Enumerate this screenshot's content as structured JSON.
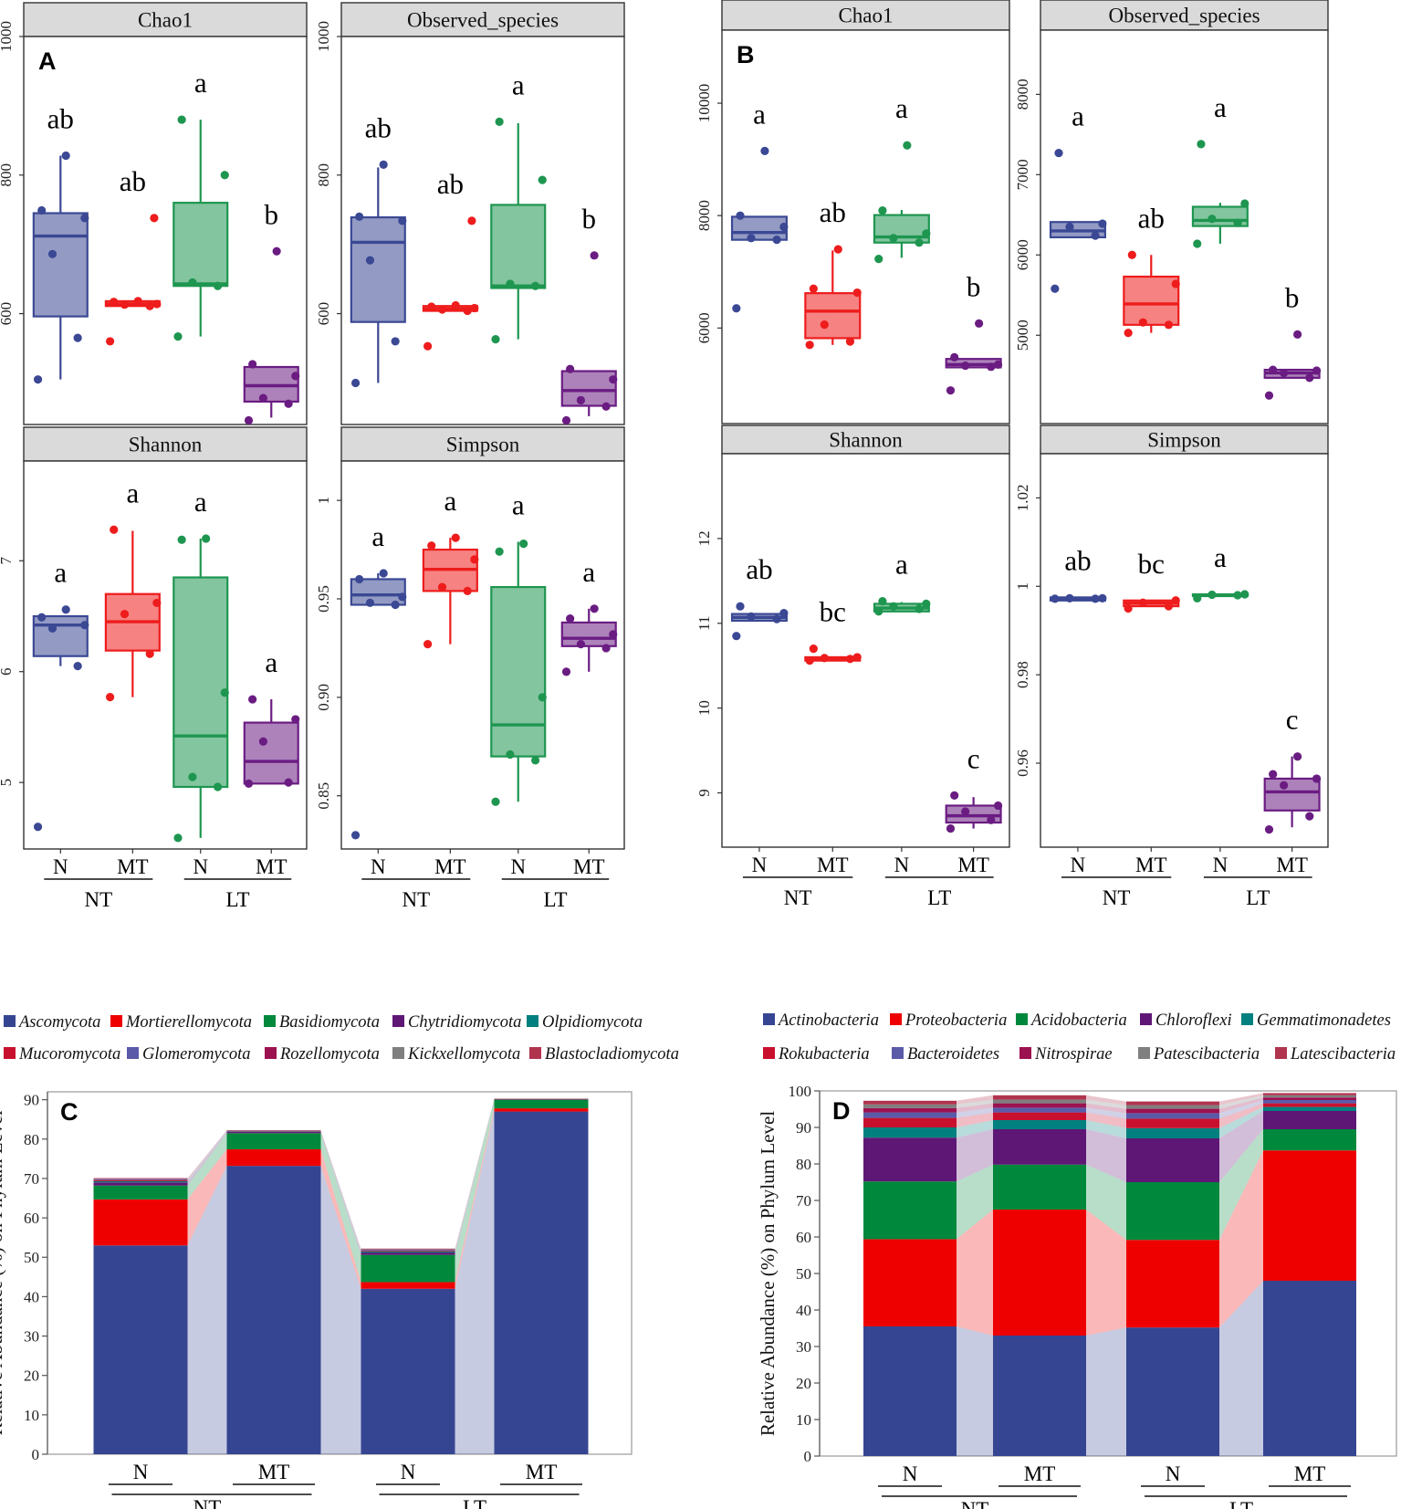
{
  "colors": {
    "N_NT": "#3B4894",
    "MT_NT": "#EE1C1C",
    "N_LT": "#1E9650",
    "MT_LT": "#6A1C82",
    "strip_bg": "#DADADA"
  },
  "panels": {
    "A": "A",
    "B": "B",
    "C": "C",
    "D": "D"
  },
  "x_axis": {
    "labels": [
      "N",
      "MT",
      "N",
      "MT"
    ],
    "group_labels": [
      "NT",
      "LT"
    ]
  },
  "chart_data": [
    {
      "type": "boxplot",
      "panel": "A",
      "title": "Chao1",
      "ylim": [
        440,
        1000
      ],
      "yticks": [
        600,
        800,
        1000
      ],
      "groups": [
        {
          "name": "N NT",
          "q1": 596,
          "median": 712,
          "q3": 745,
          "whisker_low": 505,
          "whisker_high": 828,
          "points": [
            505,
            565,
            686,
            738,
            749,
            828
          ],
          "sig": "ab"
        },
        {
          "name": "MT NT",
          "q1": 611,
          "median": 614,
          "q3": 618,
          "whisker_low": 611,
          "whisker_high": 618,
          "points": [
            560,
            611,
            613,
            614,
            617,
            618,
            738
          ],
          "sig": "ab"
        },
        {
          "name": "N LT",
          "q1": 640,
          "median": 643,
          "q3": 760,
          "whisker_low": 567,
          "whisker_high": 880,
          "points": [
            567,
            640,
            645,
            800,
            880
          ],
          "sig": "a"
        },
        {
          "name": "MT LT",
          "q1": 473,
          "median": 496,
          "q3": 523,
          "whisker_low": 450,
          "whisker_high": 523,
          "points": [
            446,
            470,
            478,
            510,
            527,
            690
          ],
          "sig": "b"
        }
      ]
    },
    {
      "type": "boxplot",
      "panel": "A",
      "title": "Observed_species",
      "ylim": [
        440,
        1000
      ],
      "yticks": [
        600,
        800,
        1000
      ],
      "groups": [
        {
          "name": "N NT",
          "q1": 588,
          "median": 703,
          "q3": 739,
          "whisker_low": 500,
          "whisker_high": 811,
          "points": [
            500,
            560,
            677,
            734,
            740,
            815
          ],
          "sig": "ab"
        },
        {
          "name": "MT NT",
          "q1": 604,
          "median": 607,
          "q3": 611,
          "whisker_low": 604,
          "whisker_high": 611,
          "points": [
            553,
            604,
            606,
            608,
            610,
            612,
            734
          ],
          "sig": "ab"
        },
        {
          "name": "N LT",
          "q1": 637,
          "median": 640,
          "q3": 757,
          "whisker_low": 563,
          "whisker_high": 875,
          "points": [
            563,
            640,
            643,
            793,
            877
          ],
          "sig": "a"
        },
        {
          "name": "MT LT",
          "q1": 467,
          "median": 489,
          "q3": 517,
          "whisker_low": 452,
          "whisker_high": 517,
          "points": [
            446,
            466,
            475,
            505,
            520,
            684
          ],
          "sig": "b"
        }
      ]
    },
    {
      "type": "boxplot",
      "panel": "A",
      "title": "Shannon",
      "ylim": [
        4.4,
        7.9
      ],
      "yticks": [
        5,
        6,
        7
      ],
      "groups": [
        {
          "name": "N NT",
          "q1": 6.14,
          "median": 6.42,
          "q3": 6.5,
          "whisker_low": 6.05,
          "whisker_high": 6.5,
          "points": [
            4.6,
            6.05,
            6.39,
            6.42,
            6.49,
            6.56
          ],
          "sig": "a"
        },
        {
          "name": "MT NT",
          "q1": 6.19,
          "median": 6.45,
          "q3": 6.7,
          "whisker_low": 5.77,
          "whisker_high": 7.27,
          "points": [
            5.77,
            6.16,
            6.52,
            6.62,
            7.28
          ],
          "sig": "a"
        },
        {
          "name": "N LT",
          "q1": 4.96,
          "median": 5.42,
          "q3": 6.85,
          "whisker_low": 4.5,
          "whisker_high": 7.2,
          "points": [
            4.5,
            4.96,
            5.05,
            5.81,
            7.19,
            7.2
          ],
          "sig": "a"
        },
        {
          "name": "MT LT",
          "q1": 4.99,
          "median": 5.19,
          "q3": 5.54,
          "whisker_low": 4.99,
          "whisker_high": 5.75,
          "points": [
            4.99,
            5.0,
            5.37,
            5.57,
            5.75
          ],
          "sig": "a"
        }
      ]
    },
    {
      "type": "boxplot",
      "panel": "A",
      "title": "Simpson",
      "ylim": [
        0.823,
        1.02
      ],
      "yticks": [
        0.85,
        0.9,
        0.95,
        1.0
      ],
      "groups": [
        {
          "name": "N NT",
          "q1": 0.947,
          "median": 0.952,
          "q3": 0.96,
          "whisker_low": 0.947,
          "whisker_high": 0.963,
          "points": [
            0.83,
            0.947,
            0.948,
            0.951,
            0.96,
            0.963
          ],
          "sig": "a"
        },
        {
          "name": "MT NT",
          "q1": 0.954,
          "median": 0.965,
          "q3": 0.975,
          "whisker_low": 0.927,
          "whisker_high": 0.981,
          "points": [
            0.927,
            0.954,
            0.956,
            0.97,
            0.977,
            0.981
          ],
          "sig": "a"
        },
        {
          "name": "N LT",
          "q1": 0.87,
          "median": 0.886,
          "q3": 0.956,
          "whisker_low": 0.847,
          "whisker_high": 0.979,
          "points": [
            0.847,
            0.868,
            0.871,
            0.9,
            0.974,
            0.978
          ],
          "sig": "a"
        },
        {
          "name": "MT LT",
          "q1": 0.926,
          "median": 0.93,
          "q3": 0.938,
          "whisker_low": 0.913,
          "whisker_high": 0.945,
          "points": [
            0.913,
            0.925,
            0.927,
            0.932,
            0.94,
            0.945
          ],
          "sig": "a"
        }
      ]
    },
    {
      "type": "boxplot",
      "panel": "B",
      "title": "Chao1",
      "ylim": [
        4300,
        11300
      ],
      "yticks": [
        6000,
        8000,
        10000
      ],
      "groups": [
        {
          "name": "N NT",
          "q1": 7570,
          "median": 7700,
          "q3": 7980,
          "whisker_low": 7570,
          "whisker_high": 7980,
          "points": [
            6350,
            7570,
            7600,
            7800,
            8000,
            9150
          ],
          "sig": "a"
        },
        {
          "name": "MT NT",
          "q1": 5820,
          "median": 6300,
          "q3": 6620,
          "whisker_low": 5700,
          "whisker_high": 7380,
          "points": [
            5700,
            5760,
            6060,
            6630,
            6700,
            7400
          ],
          "sig": "ab"
        },
        {
          "name": "N LT",
          "q1": 7520,
          "median": 7620,
          "q3": 8010,
          "whisker_low": 7250,
          "whisker_high": 8100,
          "points": [
            7230,
            7520,
            7600,
            7680,
            8090,
            9250
          ],
          "sig": "a"
        },
        {
          "name": "MT LT",
          "q1": 5300,
          "median": 5350,
          "q3": 5450,
          "whisker_low": 5300,
          "whisker_high": 5450,
          "points": [
            4890,
            5310,
            5330,
            5350,
            5480,
            6080
          ],
          "sig": "b"
        }
      ]
    },
    {
      "type": "boxplot",
      "panel": "B",
      "title": "Observed_species",
      "ylim": [
        3900,
        8800
      ],
      "yticks": [
        5000,
        6000,
        7000,
        8000
      ],
      "groups": [
        {
          "name": "N NT",
          "q1": 6220,
          "median": 6300,
          "q3": 6410,
          "whisker_low": 6220,
          "whisker_high": 6410,
          "points": [
            5580,
            6240,
            6350,
            6390,
            7270
          ],
          "sig": "a"
        },
        {
          "name": "MT NT",
          "q1": 5130,
          "median": 5390,
          "q3": 5730,
          "whisker_low": 5030,
          "whisker_high": 6000,
          "points": [
            5030,
            5130,
            5160,
            5640,
            6000
          ],
          "sig": "ab"
        },
        {
          "name": "N LT",
          "q1": 6360,
          "median": 6430,
          "q3": 6600,
          "whisker_low": 6140,
          "whisker_high": 6650,
          "points": [
            6140,
            6400,
            6450,
            6640,
            7380
          ],
          "sig": "a"
        },
        {
          "name": "MT LT",
          "q1": 4470,
          "median": 4530,
          "q3": 4570,
          "whisker_low": 4470,
          "whisker_high": 4570,
          "points": [
            4250,
            4470,
            4530,
            4560,
            4570,
            5010
          ],
          "sig": "b"
        }
      ]
    },
    {
      "type": "boxplot",
      "panel": "B",
      "title": "Shannon",
      "ylim": [
        8.36,
        13.0
      ],
      "yticks": [
        9,
        10,
        11,
        12
      ],
      "groups": [
        {
          "name": "N NT",
          "q1": 11.03,
          "median": 11.07,
          "q3": 11.11,
          "whisker_low": 11.03,
          "whisker_high": 11.11,
          "points": [
            10.85,
            11.05,
            11.08,
            11.12,
            11.2
          ],
          "sig": "ab"
        },
        {
          "name": "MT NT",
          "q1": 10.56,
          "median": 10.58,
          "q3": 10.6,
          "whisker_low": 10.56,
          "whisker_high": 10.6,
          "points": [
            10.56,
            10.58,
            10.59,
            10.6,
            10.7
          ],
          "sig": "bc"
        },
        {
          "name": "N LT",
          "q1": 11.14,
          "median": 11.18,
          "q3": 11.23,
          "whisker_low": 11.14,
          "whisker_high": 11.25,
          "points": [
            11.14,
            11.17,
            11.2,
            11.23,
            11.26
          ],
          "sig": "a"
        },
        {
          "name": "MT LT",
          "q1": 8.65,
          "median": 8.73,
          "q3": 8.85,
          "whisker_low": 8.58,
          "whisker_high": 8.95,
          "points": [
            8.58,
            8.68,
            8.78,
            8.85,
            8.97
          ],
          "sig": "c"
        }
      ]
    },
    {
      "type": "boxplot",
      "panel": "B",
      "title": "Simpson",
      "ylim": [
        0.941,
        1.03
      ],
      "yticks": [
        0.96,
        0.98,
        1.0,
        1.02
      ],
      "groups": [
        {
          "name": "N NT",
          "q1": 0.9968,
          "median": 0.9972,
          "q3": 0.9975,
          "whisker_low": 0.9968,
          "whisker_high": 0.9975,
          "points": [
            0.9972,
            0.9972,
            0.9973,
            0.9973
          ],
          "sig": "ab"
        },
        {
          "name": "MT NT",
          "q1": 0.9955,
          "median": 0.9962,
          "q3": 0.9968,
          "whisker_low": 0.9955,
          "whisker_high": 0.9968,
          "points": [
            0.995,
            0.9955,
            0.9963,
            0.9968
          ],
          "sig": "bc"
        },
        {
          "name": "N LT",
          "q1": 0.9978,
          "median": 0.998,
          "q3": 0.9982,
          "whisker_low": 0.9978,
          "whisker_high": 0.9982,
          "points": [
            0.9973,
            0.998,
            0.9981,
            0.9982
          ],
          "sig": "a"
        },
        {
          "name": "MT LT",
          "q1": 0.9493,
          "median": 0.9535,
          "q3": 0.9565,
          "whisker_low": 0.9455,
          "whisker_high": 0.9615,
          "points": [
            0.945,
            0.948,
            0.955,
            0.9565,
            0.9575,
            0.9615
          ],
          "sig": "c"
        }
      ]
    },
    {
      "type": "stacked_bar",
      "panel": "C",
      "ylabel": "Relative Abundance (%) on Phylum Level",
      "ylim": [
        0,
        92
      ],
      "yticks": [
        0,
        10,
        20,
        30,
        40,
        50,
        60,
        70,
        80,
        90
      ],
      "categories": [
        "N",
        "MT",
        "N",
        "MT"
      ],
      "groups": [
        "NT",
        "LT"
      ],
      "series": [
        {
          "name": "Ascomycota",
          "color": "#364592",
          "values": [
            53,
            73.2,
            42,
            87
          ]
        },
        {
          "name": "Mortierellomycota",
          "color": "#EE0000",
          "values": [
            11.7,
            4.2,
            1.7,
            0.8
          ]
        },
        {
          "name": "Basidiomycota",
          "color": "#00883C",
          "values": [
            3.5,
            4.1,
            6.9,
            2.2
          ]
        },
        {
          "name": "Chytridiomycota",
          "color": "#5E1775",
          "values": [
            0.8,
            0.3,
            0.6,
            0.05
          ]
        },
        {
          "name": "Olpidiomycota",
          "color": "#00807E",
          "values": [
            0.3,
            0.1,
            0.3,
            0.05
          ]
        },
        {
          "name": "Mucoromycota",
          "color": "#C8102E",
          "values": [
            0.3,
            0.1,
            0.2,
            0.05
          ]
        },
        {
          "name": "Glomeromycota",
          "color": "#5A5AA8",
          "values": [
            0.2,
            0.1,
            0.2,
            0.02
          ]
        },
        {
          "name": "Rozellomycota",
          "color": "#9C1150",
          "values": [
            0.1,
            0.05,
            0.1,
            0.02
          ]
        },
        {
          "name": "Kickxellomycota",
          "color": "#7F7F7F",
          "values": [
            0.1,
            0.05,
            0.1,
            0.02
          ]
        },
        {
          "name": "Blastocladiomycota",
          "color": "#B0344E",
          "values": [
            0.1,
            0.05,
            0.1,
            0.02
          ]
        }
      ]
    },
    {
      "type": "stacked_bar",
      "panel": "D",
      "ylabel": "Relative Abundance (%) on Phylum Level",
      "ylim": [
        0,
        100
      ],
      "yticks": [
        0,
        10,
        20,
        30,
        40,
        50,
        60,
        70,
        80,
        90,
        100
      ],
      "categories": [
        "N",
        "MT",
        "N",
        "MT"
      ],
      "groups": [
        "NT",
        "LT"
      ],
      "series": [
        {
          "name": "Actinobacteria",
          "color": "#364592",
          "values": [
            35.5,
            33,
            35.2,
            48
          ]
        },
        {
          "name": "Proteobacteria",
          "color": "#EE0000",
          "values": [
            23.9,
            34.5,
            24,
            35.7
          ]
        },
        {
          "name": "Acidobacteria",
          "color": "#00883C",
          "values": [
            15.8,
            12.3,
            15.8,
            5.8
          ]
        },
        {
          "name": "Chloroflexi",
          "color": "#5E1775",
          "values": [
            12,
            9.7,
            12,
            5
          ]
        },
        {
          "name": "Gemmatimonadetes",
          "color": "#00807E",
          "values": [
            2.8,
            2.5,
            2.8,
            1.1
          ]
        },
        {
          "name": "Rokubacteria",
          "color": "#C8102E",
          "values": [
            2.6,
            2.1,
            2.6,
            1.0
          ]
        },
        {
          "name": "Bacteroidetes",
          "color": "#5A5AA8",
          "values": [
            1.5,
            1.3,
            1.5,
            0.9
          ]
        },
        {
          "name": "Nitrospirae",
          "color": "#9C1150",
          "values": [
            1.2,
            1.2,
            1.2,
            0.7
          ]
        },
        {
          "name": "Patescibacteria",
          "color": "#7F7F7F",
          "values": [
            1.0,
            1.0,
            1.0,
            0.6
          ]
        },
        {
          "name": "Latescibacteria",
          "color": "#B0344E",
          "values": [
            1.0,
            1.2,
            1.0,
            0.6
          ]
        }
      ]
    }
  ]
}
